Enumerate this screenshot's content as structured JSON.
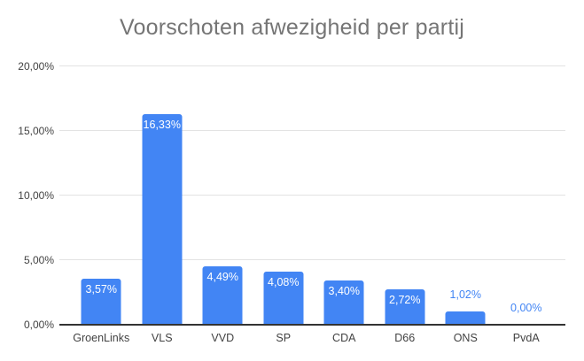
{
  "title": "Voorschoten afwezigheid per partij",
  "colors": {
    "bar": "#4285f4",
    "title_text": "#757575",
    "axis_text": "#424242",
    "gridline": "#e3e3e3",
    "axis_line": "#333333",
    "label_inside": "#ffffff",
    "label_outside": "#4285f4",
    "background": "#ffffff"
  },
  "chart_data": {
    "type": "bar",
    "title": "Voorschoten afwezigheid per partij",
    "categories": [
      "GroenLinks",
      "VLS",
      "VVD",
      "SP",
      "CDA",
      "D66",
      "ONS",
      "PvdA"
    ],
    "values": [
      3.57,
      16.33,
      4.49,
      4.08,
      3.4,
      2.72,
      1.02,
      0.0
    ],
    "value_labels": [
      "3,57%",
      "16,33%",
      "4,49%",
      "4,08%",
      "3,40%",
      "2,72%",
      "1,02%",
      "0,00%"
    ],
    "xlabel": "",
    "ylabel": "",
    "ylim": [
      0,
      20
    ],
    "yticks": [
      {
        "value": 0,
        "label": "0,00%"
      },
      {
        "value": 5,
        "label": "5,00%"
      },
      {
        "value": 10,
        "label": "10,00%"
      },
      {
        "value": 15,
        "label": "15,00%"
      },
      {
        "value": 20,
        "label": "20,00%"
      }
    ],
    "grid": true,
    "legend": "none"
  }
}
